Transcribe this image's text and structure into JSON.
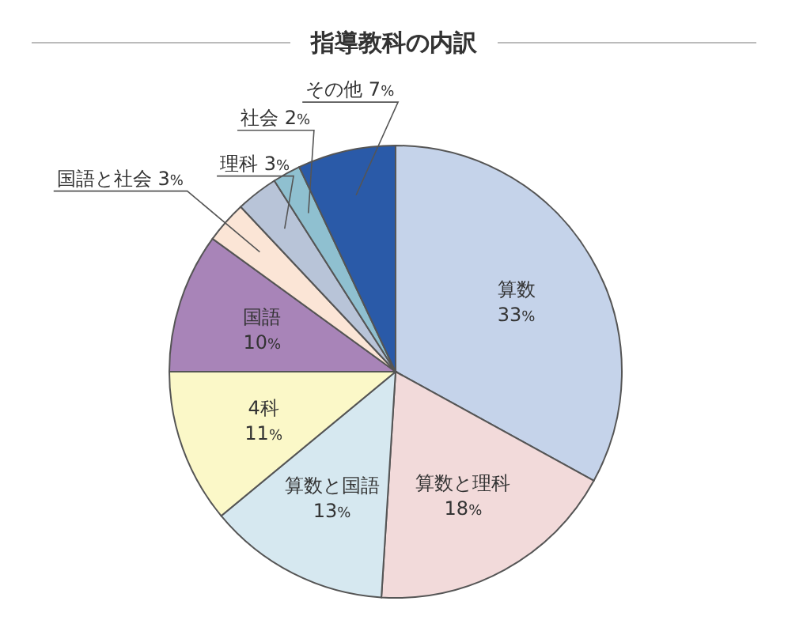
{
  "chart_data": {
    "type": "pie",
    "title": "指導教科の内訳",
    "categories": [
      "算数",
      "算数と理科",
      "算数と国語",
      "4科",
      "国語",
      "国語と社会",
      "理科",
      "社会",
      "その他"
    ],
    "values": [
      33,
      18,
      13,
      11,
      10,
      3,
      3,
      2,
      7
    ],
    "value_labels": [
      "33%",
      "18%",
      "13%",
      "11%",
      "10%",
      "3%",
      "3%",
      "2%",
      "7%"
    ],
    "colors": [
      "#c5d3ea",
      "#f2dada",
      "#d6e8f0",
      "#fbf8c8",
      "#a884b8",
      "#fbe5d6",
      "#b8c4d8",
      "#8fc0d0",
      "#2a5aa8"
    ]
  }
}
